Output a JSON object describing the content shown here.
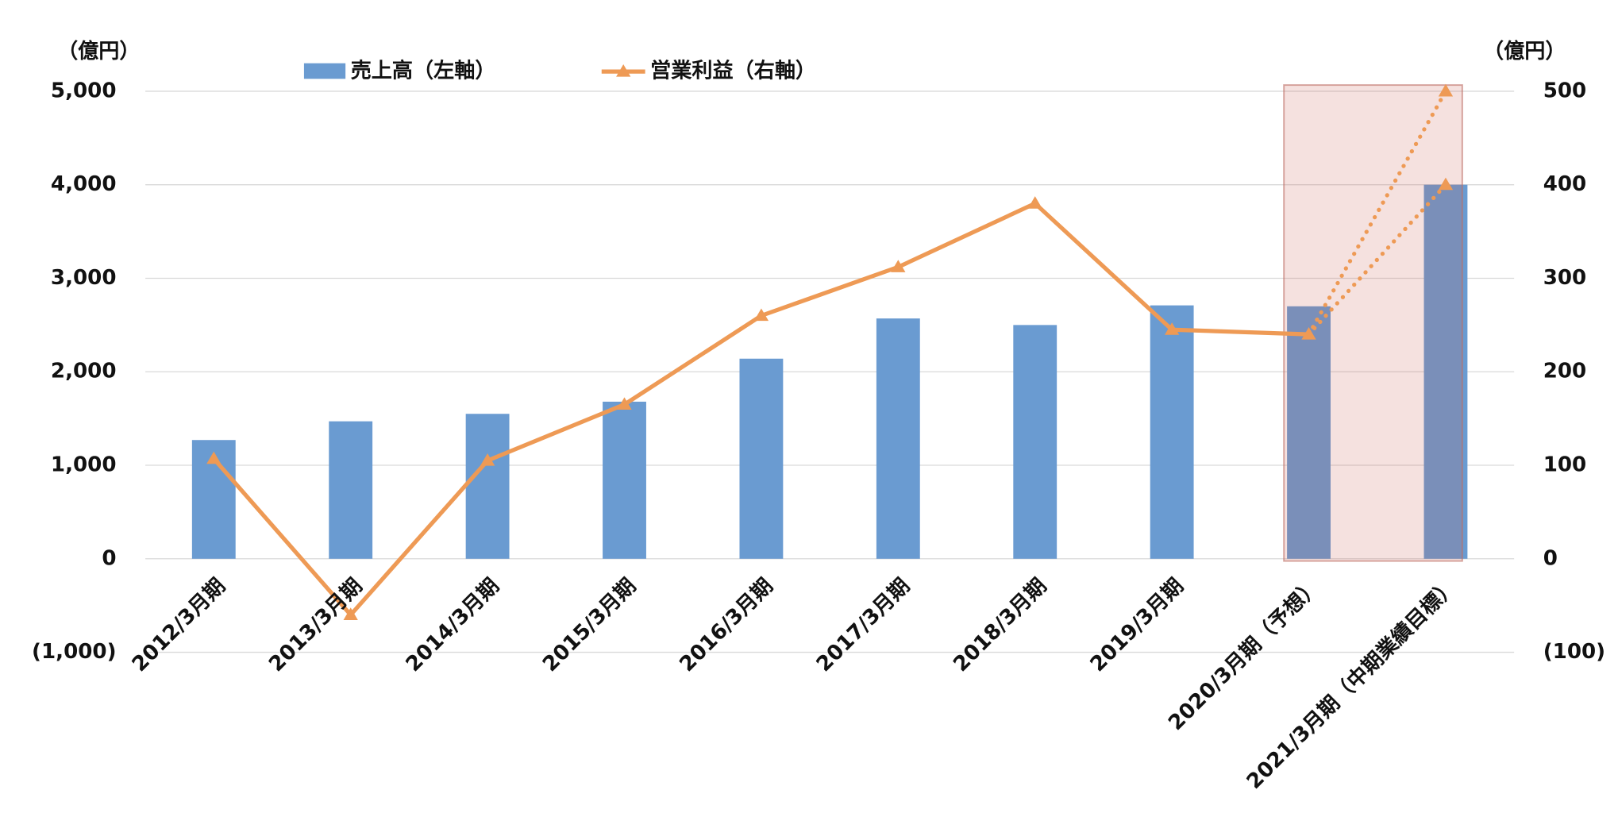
{
  "chart_data": {
    "type": "bar-line",
    "y_unit": "（億円）",
    "y2_unit": "（億円）",
    "categories": [
      "2012/3月期",
      "2013/3月期",
      "2014/3月期",
      "2015/3月期",
      "2016/3月期",
      "2017/3月期",
      "2018/3月期",
      "2019/3月期",
      "2020/3月期（予想）",
      "2021/3月期（中期業績目標）"
    ],
    "series": [
      {
        "name": "売上高（左軸）",
        "type": "bar",
        "color": "#6a9bd1",
        "values": [
          1270,
          1470,
          1550,
          1680,
          2140,
          2570,
          2500,
          2710,
          2700,
          4000
        ]
      },
      {
        "name": "営業利益（右軸）",
        "type": "line",
        "axis": "y2",
        "color": "#ee9a55",
        "values": [
          107,
          -60,
          105,
          165,
          260,
          312,
          380,
          245,
          240,
          null
        ]
      }
    ],
    "projections": [
      {
        "axis": "y2",
        "color": "#ee9a55",
        "values": [
          null,
          null,
          null,
          null,
          null,
          null,
          null,
          null,
          240,
          500
        ]
      },
      {
        "axis": "y2",
        "color": "#ee9a55",
        "values": [
          null,
          null,
          null,
          null,
          null,
          null,
          null,
          null,
          240,
          400
        ]
      }
    ],
    "ylim": [
      -1000,
      5000
    ],
    "yticks": [
      {
        "value": -1000,
        "label": "(1,000)",
        "color": "#e03030"
      },
      0,
      {
        "value": 1000,
        "label": "1,000"
      },
      {
        "value": 2000,
        "label": "2,000"
      },
      {
        "value": 3000,
        "label": "3,000"
      },
      {
        "value": 4000,
        "label": "4,000"
      },
      {
        "value": 5000,
        "label": "5,000"
      }
    ],
    "y2lim": [
      -100,
      500
    ],
    "y2ticks": [
      {
        "value": -100,
        "label": "(100)",
        "color": "#e03030"
      },
      0,
      100,
      200,
      300,
      400,
      500
    ],
    "grid": true
  }
}
